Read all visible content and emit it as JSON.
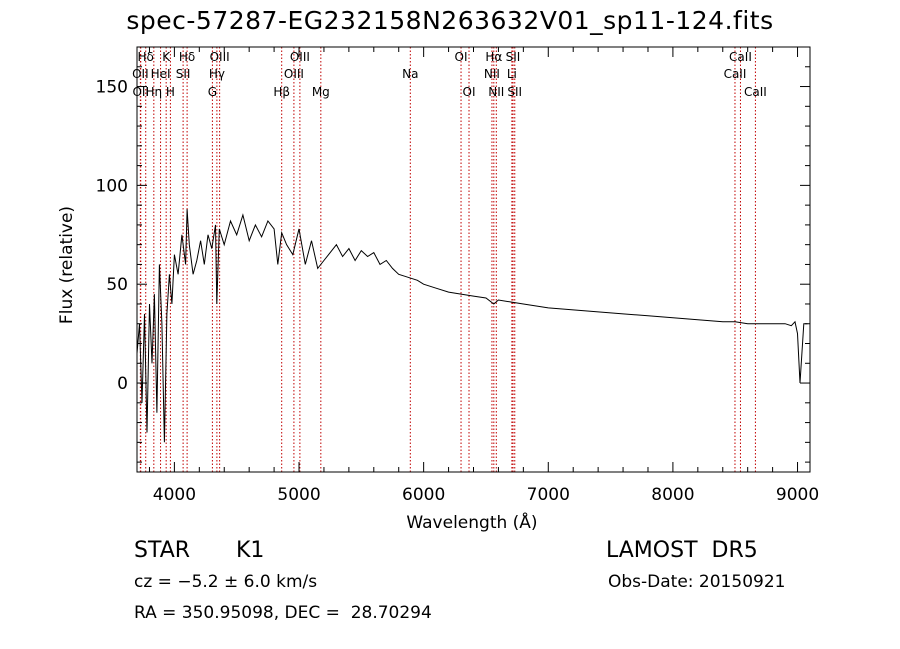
{
  "title": "spec-57287-EG232158N263632V01_sp11-124.fits",
  "info": {
    "obj_type": "STAR",
    "subclass": "K1",
    "survey": "LAMOST  DR5",
    "redshift": "cz = −5.2 ± 6.0 km/s",
    "obs_date": "Obs-Date: 20150921",
    "coords": "RA = 350.95098, DEC =  28.70294"
  },
  "colors": {
    "spectrum": "#000000",
    "line_marker": "#c00000",
    "axes": "#000000"
  },
  "chart_data": {
    "type": "line",
    "title": "spec-57287-EG232158N263632V01_sp11-124.fits",
    "xlabel": "Wavelength (Å)",
    "ylabel": "Flux (relative)",
    "xlim": [
      3700,
      9100
    ],
    "ylim": [
      -45,
      170
    ],
    "x_ticks": [
      4000,
      5000,
      6000,
      7000,
      8000,
      9000
    ],
    "y_ticks": [
      0,
      50,
      100,
      150
    ],
    "grid": false,
    "series": [
      {
        "x": [
          3700,
          3720,
          3740,
          3760,
          3780,
          3800,
          3820,
          3840,
          3860,
          3880,
          3900,
          3920,
          3940,
          3960,
          3980,
          4000,
          4030,
          4060,
          4090,
          4102,
          4120,
          4150,
          4180,
          4210,
          4240,
          4270,
          4300,
          4330,
          4340,
          4360,
          4400,
          4450,
          4500,
          4550,
          4600,
          4650,
          4700,
          4750,
          4800,
          4830,
          4861,
          4900,
          4950,
          5000,
          5050,
          5100,
          5150,
          5200,
          5250,
          5300,
          5350,
          5400,
          5450,
          5500,
          5550,
          5600,
          5650,
          5700,
          5750,
          5800,
          5850,
          5900,
          5950,
          6000,
          6100,
          6200,
          6300,
          6400,
          6500,
          6563,
          6600,
          6700,
          6800,
          7000,
          7200,
          7400,
          7600,
          7800,
          8000,
          8200,
          8400,
          8500,
          8600,
          8700,
          8800,
          8900,
          8950,
          8980,
          9000,
          9020,
          9050,
          9080
        ],
        "y": [
          15,
          30,
          -10,
          35,
          -25,
          40,
          10,
          45,
          -15,
          60,
          30,
          -30,
          35,
          55,
          40,
          65,
          55,
          75,
          60,
          88,
          70,
          55,
          62,
          72,
          60,
          75,
          68,
          80,
          40,
          78,
          70,
          82,
          75,
          85,
          72,
          80,
          74,
          82,
          78,
          60,
          76,
          70,
          65,
          78,
          60,
          72,
          58,
          62,
          66,
          70,
          64,
          68,
          62,
          67,
          64,
          66,
          60,
          62,
          58,
          55,
          54,
          53,
          52,
          50,
          48,
          46,
          45,
          44,
          43,
          40,
          42,
          41,
          40,
          38,
          37,
          36,
          35,
          34,
          33,
          32,
          31,
          31,
          30,
          30,
          30,
          30,
          29,
          31,
          25,
          0,
          30,
          30
        ]
      }
    ],
    "lines": [
      {
        "label": "Hδ",
        "wave": 3770,
        "row": 0
      },
      {
        "label": "K",
        "wave": 3934,
        "row": 0
      },
      {
        "label": "Hδ",
        "wave": 4102,
        "row": 0
      },
      {
        "label": "OIII",
        "wave": 4363,
        "row": 0
      },
      {
        "label": "OIII",
        "wave": 5007,
        "row": 0
      },
      {
        "label": "OI",
        "wave": 6300,
        "row": 0
      },
      {
        "label": "Hα",
        "wave": 6563,
        "row": 0
      },
      {
        "label": "SII",
        "wave": 6717,
        "row": 0
      },
      {
        "label": "CaII",
        "wave": 8542,
        "row": 0
      },
      {
        "label": "OII",
        "wave": 3727,
        "row": 1
      },
      {
        "label": "HeI",
        "wave": 3889,
        "row": 1
      },
      {
        "label": "SII",
        "wave": 4070,
        "row": 1
      },
      {
        "label": "Hγ",
        "wave": 4341,
        "row": 1
      },
      {
        "label": "OIII",
        "wave": 4959,
        "row": 1
      },
      {
        "label": "Na",
        "wave": 5893,
        "row": 1
      },
      {
        "label": "NII",
        "wave": 6548,
        "row": 1
      },
      {
        "label": "Li",
        "wave": 6708,
        "row": 1
      },
      {
        "label": "CaII",
        "wave": 8498,
        "row": 1
      },
      {
        "label": "OII",
        "wave": 3730,
        "row": 2
      },
      {
        "label": "Hη",
        "wave": 3835,
        "row": 2
      },
      {
        "label": "H",
        "wave": 3968,
        "row": 2
      },
      {
        "label": "G",
        "wave": 4305,
        "row": 2
      },
      {
        "label": "Hβ",
        "wave": 4861,
        "row": 2
      },
      {
        "label": "Mg",
        "wave": 5175,
        "row": 2
      },
      {
        "label": "OI",
        "wave": 6364,
        "row": 2
      },
      {
        "label": "NII",
        "wave": 6583,
        "row": 2
      },
      {
        "label": "SII",
        "wave": 6731,
        "row": 2
      },
      {
        "label": "CaII",
        "wave": 8662,
        "row": 2
      }
    ]
  }
}
